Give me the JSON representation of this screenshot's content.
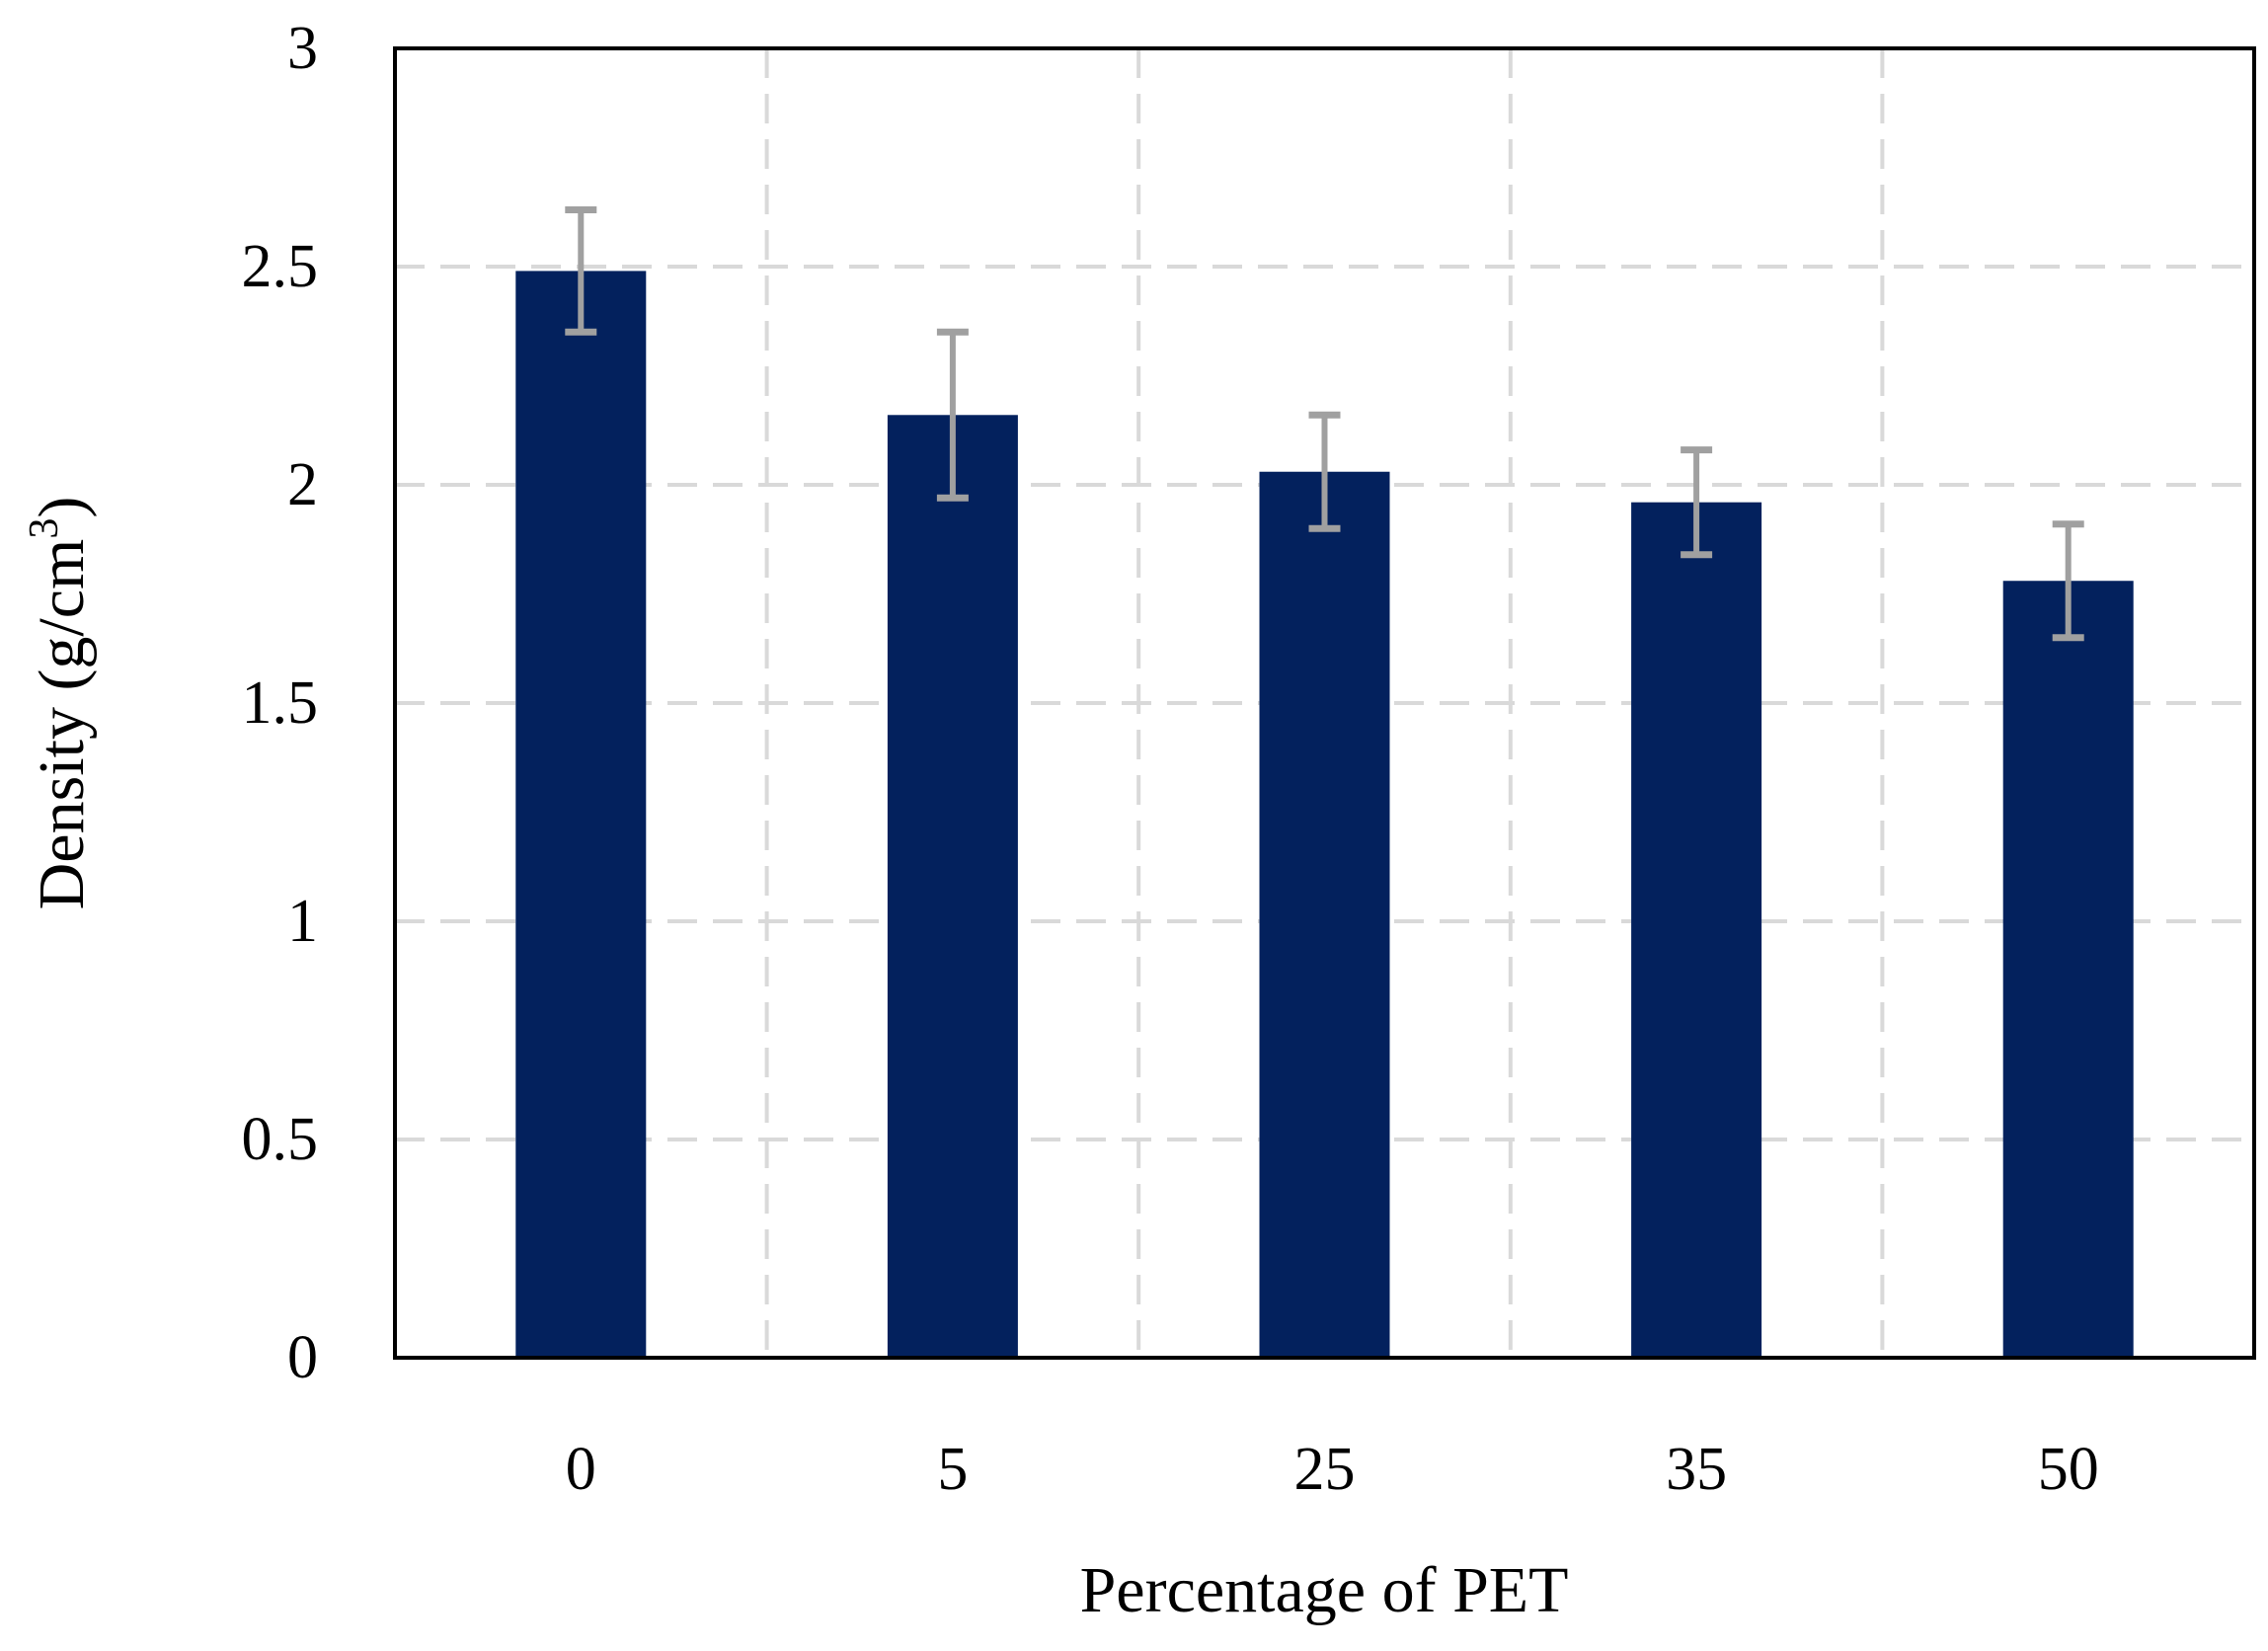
{
  "chart_data": {
    "type": "bar",
    "categories": [
      "0",
      "5",
      "25",
      "35",
      "50"
    ],
    "values": [
      2.49,
      2.16,
      2.03,
      1.96,
      1.78
    ],
    "error_bars": [
      0.14,
      0.19,
      0.13,
      0.12,
      0.13
    ],
    "xlabel": "Percentage of PET",
    "ylabel_main": "Density (g/cm",
    "ylabel_sup": "3",
    "ylabel_close": ")",
    "ylim": [
      0,
      3
    ],
    "yticks": [
      "0",
      "0.5",
      "1",
      "1.5",
      "2",
      "2.5",
      "3"
    ],
    "grid": true,
    "bar_color": "#03215D",
    "error_bar_color": "#A0A0A0",
    "grid_color": "#D9D9D9"
  }
}
